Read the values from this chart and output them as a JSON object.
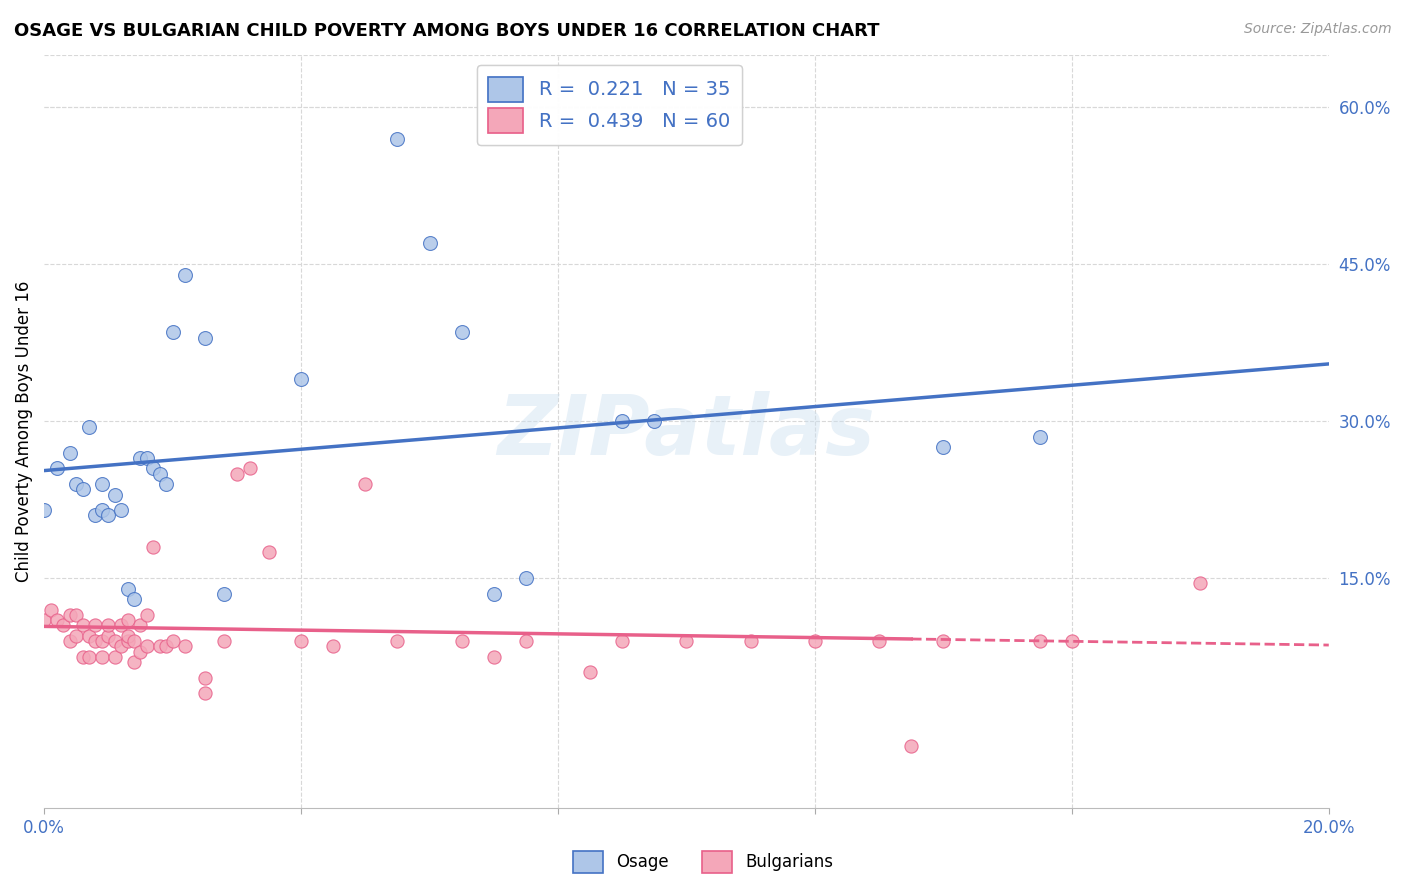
{
  "title": "OSAGE VS BULGARIAN CHILD POVERTY AMONG BOYS UNDER 16 CORRELATION CHART",
  "source": "Source: ZipAtlas.com",
  "ylabel": "Child Poverty Among Boys Under 16",
  "xlim": [
    0.0,
    0.2
  ],
  "ylim": [
    -0.07,
    0.65
  ],
  "osage_color": "#aec6e8",
  "bulgarians_color": "#f4a7b9",
  "trend_osage_color": "#4472c4",
  "trend_bulgarians_color": "#e8608a",
  "watermark": "ZIPatlas",
  "osage_points_x": [
    0.0,
    0.002,
    0.004,
    0.005,
    0.006,
    0.007,
    0.008,
    0.009,
    0.009,
    0.01,
    0.011,
    0.012,
    0.013,
    0.014,
    0.015,
    0.016,
    0.017,
    0.018,
    0.019,
    0.02,
    0.022,
    0.025,
    0.028,
    0.04,
    0.055,
    0.06,
    0.065,
    0.07,
    0.075,
    0.09,
    0.095,
    0.14,
    0.155
  ],
  "osage_points_y": [
    0.215,
    0.255,
    0.27,
    0.24,
    0.235,
    0.295,
    0.21,
    0.215,
    0.24,
    0.21,
    0.23,
    0.215,
    0.14,
    0.13,
    0.265,
    0.265,
    0.255,
    0.25,
    0.24,
    0.385,
    0.44,
    0.38,
    0.135,
    0.34,
    0.57,
    0.47,
    0.385,
    0.135,
    0.15,
    0.3,
    0.3,
    0.275,
    0.285
  ],
  "bulgarians_points_x": [
    0.0,
    0.001,
    0.002,
    0.003,
    0.004,
    0.004,
    0.005,
    0.005,
    0.006,
    0.006,
    0.007,
    0.007,
    0.008,
    0.008,
    0.009,
    0.009,
    0.01,
    0.01,
    0.011,
    0.011,
    0.012,
    0.012,
    0.013,
    0.013,
    0.013,
    0.014,
    0.014,
    0.015,
    0.015,
    0.016,
    0.016,
    0.017,
    0.018,
    0.019,
    0.02,
    0.022,
    0.025,
    0.025,
    0.028,
    0.03,
    0.032,
    0.035,
    0.04,
    0.045,
    0.05,
    0.055,
    0.065,
    0.07,
    0.075,
    0.085,
    0.09,
    0.1,
    0.11,
    0.12,
    0.13,
    0.135,
    0.14,
    0.155,
    0.16,
    0.18
  ],
  "bulgarians_points_y": [
    0.11,
    0.12,
    0.11,
    0.105,
    0.09,
    0.115,
    0.095,
    0.115,
    0.075,
    0.105,
    0.075,
    0.095,
    0.09,
    0.105,
    0.09,
    0.075,
    0.095,
    0.105,
    0.09,
    0.075,
    0.085,
    0.105,
    0.09,
    0.095,
    0.11,
    0.09,
    0.07,
    0.08,
    0.105,
    0.085,
    0.115,
    0.18,
    0.085,
    0.085,
    0.09,
    0.085,
    0.055,
    0.04,
    0.09,
    0.25,
    0.255,
    0.175,
    0.09,
    0.085,
    0.24,
    0.09,
    0.09,
    0.075,
    0.09,
    0.06,
    0.09,
    0.09,
    0.09,
    0.09,
    0.09,
    -0.01,
    0.09,
    0.09,
    0.09,
    0.145
  ],
  "background_color": "#ffffff",
  "grid_color": "#d8d8d8",
  "ytick_vals": [
    0.15,
    0.3,
    0.45,
    0.6
  ],
  "ytick_labels": [
    "15.0%",
    "30.0%",
    "45.0%",
    "60.0%"
  ],
  "xtick_positions": [
    0.0,
    0.04,
    0.08,
    0.12,
    0.16,
    0.2
  ],
  "xtick_labels": [
    "0.0%",
    "",
    "",
    "",
    "",
    "20.0%"
  ]
}
